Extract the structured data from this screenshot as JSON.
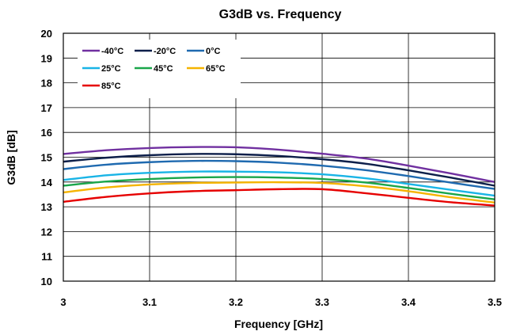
{
  "chart_data": {
    "type": "line",
    "title": "G3dB vs. Frequency",
    "xlabel": "Frequency [GHz]",
    "ylabel": "G3dB [dB]",
    "xlim": [
      3,
      3.5
    ],
    "ylim": [
      10,
      20
    ],
    "xticks": [
      "3",
      "3.1",
      "3.2",
      "3.3",
      "3.4",
      "3.5"
    ],
    "yticks": [
      "10",
      "11",
      "12",
      "13",
      "14",
      "15",
      "16",
      "17",
      "18",
      "19",
      "20"
    ],
    "grid": true,
    "legend_position": "top-left",
    "x": [
      3.0,
      3.05,
      3.1,
      3.15,
      3.2,
      3.25,
      3.3,
      3.35,
      3.4,
      3.45,
      3.5
    ],
    "series": [
      {
        "name": "-40°C",
        "color": "#7030a0",
        "values": [
          15.13,
          15.28,
          15.37,
          15.41,
          15.4,
          15.3,
          15.14,
          14.95,
          14.66,
          14.34,
          14.0
        ]
      },
      {
        "name": "-20°C",
        "color": "#0d1f4a",
        "values": [
          14.82,
          14.98,
          15.08,
          15.13,
          15.12,
          15.05,
          14.92,
          14.74,
          14.47,
          14.17,
          13.85
        ]
      },
      {
        "name": "0°C",
        "color": "#1f6ab0",
        "values": [
          14.52,
          14.7,
          14.8,
          14.85,
          14.84,
          14.78,
          14.66,
          14.48,
          14.24,
          13.97,
          13.72
        ]
      },
      {
        "name": "25°C",
        "color": "#19b4e6",
        "values": [
          14.08,
          14.27,
          14.37,
          14.42,
          14.42,
          14.39,
          14.31,
          14.15,
          13.92,
          13.68,
          13.45
        ]
      },
      {
        "name": "45°C",
        "color": "#1aa64a",
        "values": [
          13.85,
          14.02,
          14.12,
          14.18,
          14.2,
          14.18,
          14.12,
          13.98,
          13.76,
          13.52,
          13.3
        ]
      },
      {
        "name": "65°C",
        "color": "#f5b400",
        "values": [
          13.58,
          13.78,
          13.9,
          13.96,
          13.98,
          13.99,
          13.96,
          13.83,
          13.63,
          13.38,
          13.17
        ]
      },
      {
        "name": "85°C",
        "color": "#e60000",
        "values": [
          13.2,
          13.4,
          13.54,
          13.63,
          13.67,
          13.71,
          13.71,
          13.55,
          13.36,
          13.18,
          13.05
        ]
      }
    ]
  }
}
